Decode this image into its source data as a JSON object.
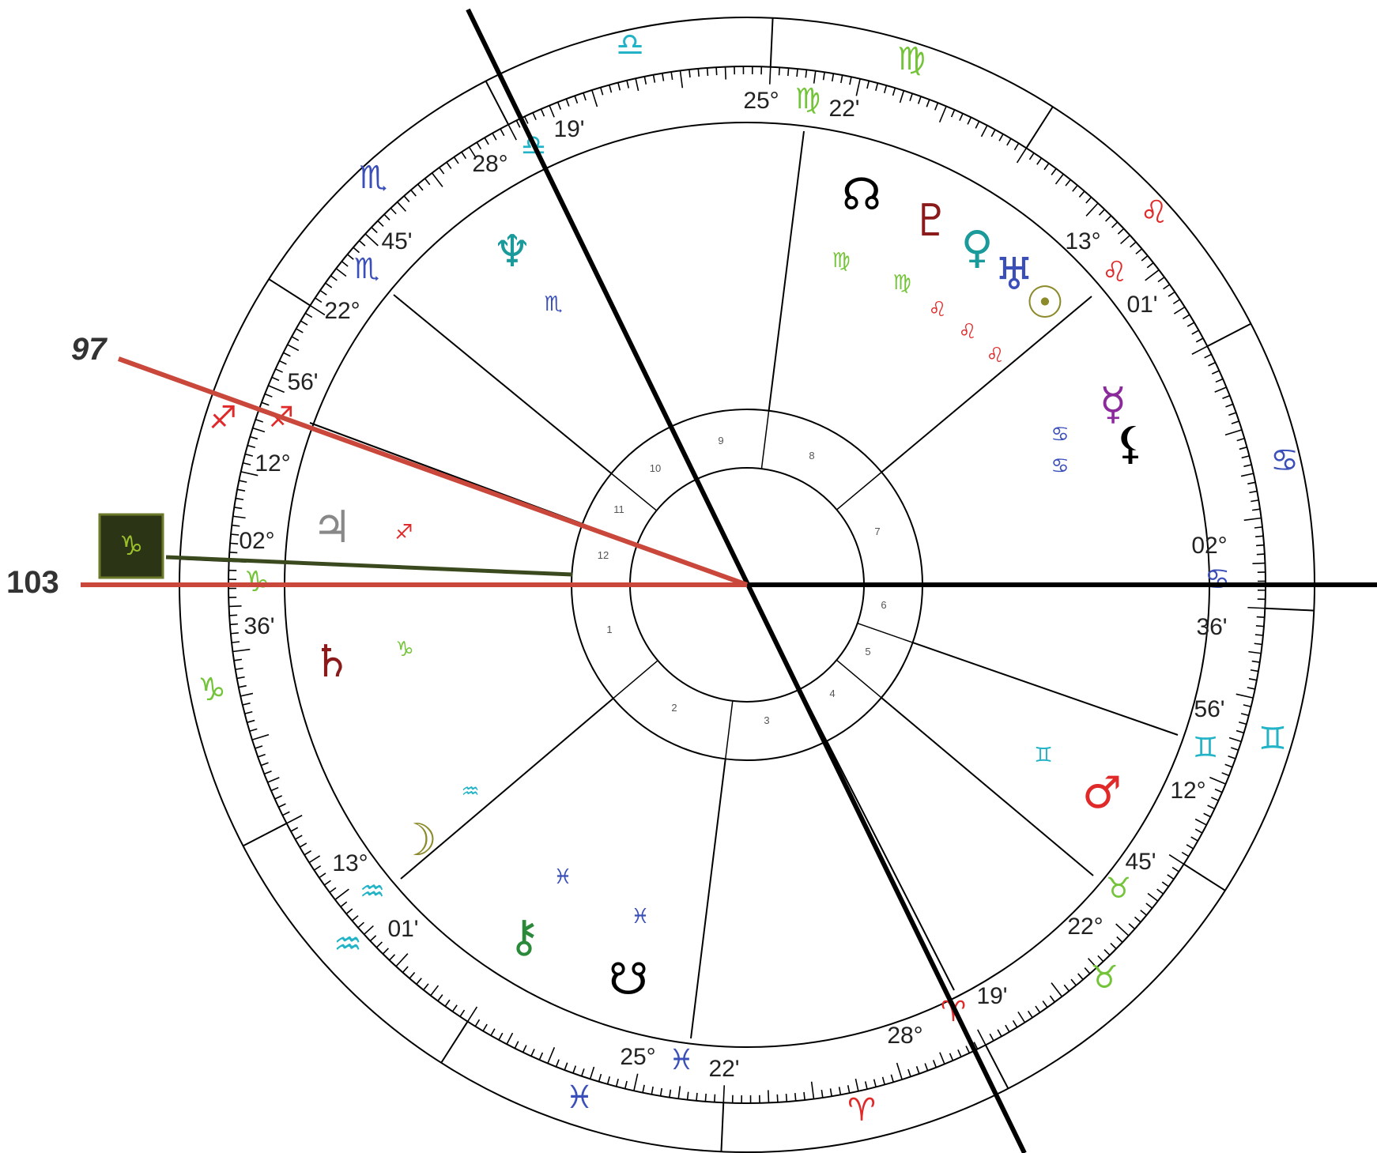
{
  "labels": {
    "angle_97": "97",
    "angle_103": "103",
    "boxed_glyph": "♑"
  },
  "colors": {
    "ring": "#000000",
    "red_line": "#c9473b",
    "green_line": "#3b4a1e",
    "box_bg": "#2b3414",
    "box_border": "#6b7a2a",
    "box_glyph": "#9bbf2a"
  },
  "outer_signs": [
    {
      "glyph": "♎",
      "color": "#22b3c7"
    },
    {
      "glyph": "♍",
      "color": "#74c43a"
    },
    {
      "glyph": "♏",
      "color": "#3a4fb8"
    },
    {
      "glyph": "♌",
      "color": "#e02a2a"
    },
    {
      "glyph": "♐",
      "color": "#e02a2a"
    },
    {
      "glyph": "♋",
      "color": "#3a4fb8"
    },
    {
      "glyph": "♑",
      "color": "#74c43a"
    },
    {
      "glyph": "♊",
      "color": "#22b3c7"
    },
    {
      "glyph": "♒",
      "color": "#22b3c7"
    },
    {
      "glyph": "♉",
      "color": "#74c43a"
    },
    {
      "glyph": "♓",
      "color": "#3a4fb8"
    },
    {
      "glyph": "♈",
      "color": "#e02a2a"
    }
  ],
  "cusps": [
    {
      "deg": "25°",
      "glyph": "♍",
      "min": "22'",
      "color": "#74c43a"
    },
    {
      "deg": "13°",
      "glyph": "♌",
      "min": "01'",
      "color": "#e02a2a"
    },
    {
      "deg": "02°",
      "glyph": "♋",
      "min": "36'",
      "color": "#3a4fb8"
    },
    {
      "deg": "12°",
      "glyph": "♊",
      "min": "56'",
      "color": "#22b3c7"
    },
    {
      "deg": "22°",
      "glyph": "♉",
      "min": "45'",
      "color": "#74c43a"
    },
    {
      "deg": "28°",
      "glyph": "♈",
      "min": "19'",
      "color": "#e02a2a"
    },
    {
      "deg": "25°",
      "glyph": "♓",
      "min": "22'",
      "color": "#3a4fb8"
    },
    {
      "deg": "13°",
      "glyph": "♒",
      "min": "01'",
      "color": "#22b3c7"
    },
    {
      "deg": "02°",
      "glyph": "♑",
      "min": "36'",
      "color": "#74c43a"
    },
    {
      "deg": "12°",
      "glyph": "♐",
      "min": "56'",
      "color": "#e02a2a"
    },
    {
      "deg": "22°",
      "glyph": "♏",
      "min": "45'",
      "color": "#3a4fb8"
    },
    {
      "deg": "28°",
      "glyph": "♎",
      "min": "19'",
      "color": "#22b3c7"
    }
  ],
  "planets": [
    {
      "name": "north-node",
      "glyph": "☊",
      "color": "#000000"
    },
    {
      "name": "pluto",
      "glyph": "♇",
      "color": "#8b1a1a"
    },
    {
      "name": "venus",
      "glyph": "♀",
      "color": "#1a9a9a"
    },
    {
      "name": "uranus",
      "glyph": "♅",
      "color": "#3a4fb8"
    },
    {
      "name": "sun",
      "glyph": "☉",
      "color": "#8c8a2a"
    },
    {
      "name": "mercury",
      "glyph": "☿",
      "color": "#8b2a9a"
    },
    {
      "name": "lilith",
      "glyph": "⚸",
      "color": "#000000"
    },
    {
      "name": "mars",
      "glyph": "♂",
      "color": "#e02a2a"
    },
    {
      "name": "south-node",
      "glyph": "☋",
      "color": "#000000"
    },
    {
      "name": "chiron",
      "glyph": "⚷",
      "color": "#2a8a3a"
    },
    {
      "name": "moon",
      "glyph": "☽",
      "color": "#8c8a2a"
    },
    {
      "name": "saturn",
      "glyph": "♄",
      "color": "#8b1a1a"
    },
    {
      "name": "jupiter",
      "glyph": "♃",
      "color": "#888888"
    },
    {
      "name": "neptune",
      "glyph": "♆",
      "color": "#1a9a9a"
    }
  ],
  "planet_signs": [
    {
      "glyph": "♍",
      "color": "#74c43a"
    },
    {
      "glyph": "♍",
      "color": "#74c43a"
    },
    {
      "glyph": "♌",
      "color": "#e02a2a"
    },
    {
      "glyph": "♌",
      "color": "#e02a2a"
    },
    {
      "glyph": "♌",
      "color": "#e02a2a"
    },
    {
      "glyph": "♋",
      "color": "#3a4fb8"
    },
    {
      "glyph": "♋",
      "color": "#3a4fb8"
    },
    {
      "glyph": "♊",
      "color": "#22b3c7"
    },
    {
      "glyph": "♓",
      "color": "#3a4fb8"
    },
    {
      "glyph": "♓",
      "color": "#3a4fb8"
    },
    {
      "glyph": "♒",
      "color": "#22b3c7"
    },
    {
      "glyph": "♑",
      "color": "#74c43a"
    },
    {
      "glyph": "♐",
      "color": "#e02a2a"
    },
    {
      "glyph": "♏",
      "color": "#3a4fb8"
    }
  ],
  "houses": [
    "1",
    "2",
    "3",
    "4",
    "5",
    "6",
    "7",
    "8",
    "9",
    "10",
    "11",
    "12"
  ]
}
